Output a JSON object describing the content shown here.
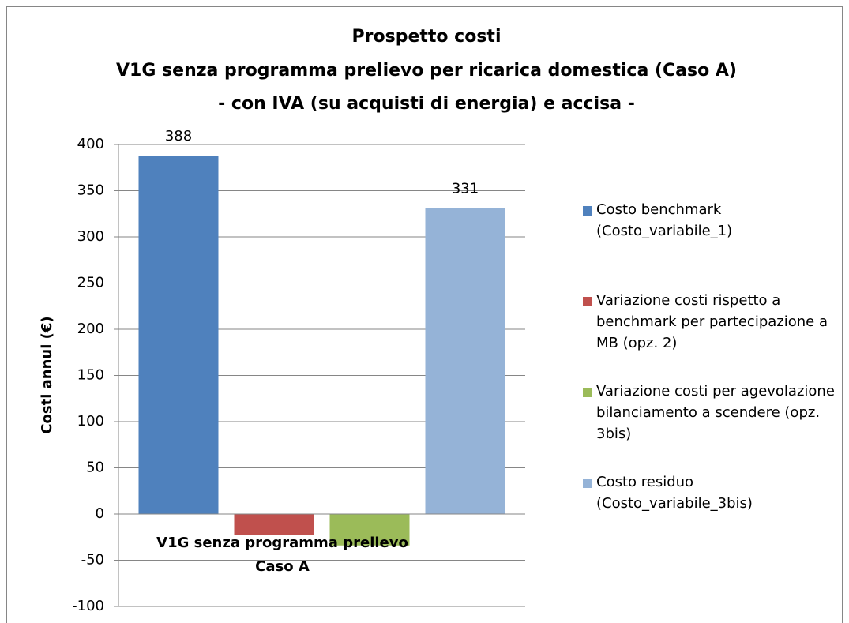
{
  "chart_data": {
    "type": "bar",
    "title": [
      "Prospetto costi",
      "V1G senza programma prelievo per ricarica domestica (Caso A)",
      "- con IVA (su acquisti di energia) e accisa -"
    ],
    "y_label": "Costi annui (€)",
    "categories": [
      [
        "V1G senza programma prelievo",
        "Caso A"
      ]
    ],
    "series": [
      {
        "name": "Costo benchmark (Costo_variabile_1)",
        "color": "#4f81bd",
        "values": [
          388
        ],
        "data_labels": true
      },
      {
        "name": "Variazione costi rispetto a benchmark per partecipazione a MB (opz. 2)",
        "color": "#c0504d",
        "values": [
          -23
        ],
        "data_labels": false
      },
      {
        "name": "Variazione costi per agevolazione bilanciamento a scendere (opz. 3bis)",
        "color": "#9bbb59",
        "values": [
          -34
        ],
        "data_labels": false
      },
      {
        "name": "Costo residuo (Costo_variabile_3bis)",
        "color": "#95b3d7",
        "values": [
          331
        ],
        "data_labels": true
      }
    ],
    "ylim": [
      -100,
      400
    ],
    "yticks": [
      -100,
      -50,
      0,
      50,
      100,
      150,
      200,
      250,
      300,
      350,
      400
    ],
    "grid": true,
    "legend": "right"
  }
}
